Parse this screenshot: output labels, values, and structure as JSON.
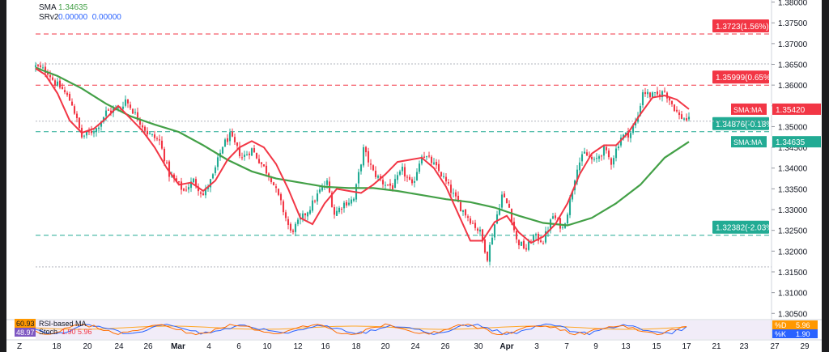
{
  "header": {
    "sma_label": "SMA",
    "sma_value": "1.34635",
    "srv2_label": "SRv2",
    "srv2_values": "0.00000  0.00000"
  },
  "chart_data": {
    "type": "candlestick",
    "title": "",
    "price_axis": {
      "ticks": [
        "1.38000",
        "1.37500",
        "1.37000",
        "1.36500",
        "1.36000",
        "1.35500",
        "1.35000",
        "1.34500",
        "1.34000",
        "1.33500",
        "1.33000",
        "1.32500",
        "1.32000",
        "1.31500",
        "1.31000",
        "1.30500"
      ],
      "min": 1.3033,
      "max": 1.3805
    },
    "time_axis": {
      "ticks": [
        "Z",
        "18",
        "20",
        "24",
        "26",
        "Mar",
        "4",
        "6",
        "10",
        "12",
        "16",
        "18",
        "20",
        "24",
        "26",
        "30",
        "Apr",
        "3",
        "7",
        "9",
        "13",
        "15",
        "17",
        "21",
        "23",
        "27",
        "29"
      ]
    },
    "levels": [
      {
        "label": "1.3723(1.56%)",
        "value": 1.3723,
        "color": "#f23645",
        "style": "dashed"
      },
      {
        "label": "1.35999(0.65%)",
        "value": 1.35999,
        "color": "#f23645",
        "style": "dashed"
      },
      {
        "label": "1.34876(-0.18%)",
        "value": 1.34876,
        "color": "#22ab94",
        "style": "dashed"
      },
      {
        "label": "1.32382(-2.03%)",
        "value": 1.32382,
        "color": "#22ab94",
        "style": "dashed"
      }
    ],
    "dotted_levels": [
      1.3651,
      1.3513,
      1.3162
    ],
    "price_tags": [
      {
        "label": "SMA:MA",
        "value": "1.35420",
        "color": "#f23645"
      },
      {
        "label": "SMA:MA",
        "value": "1.34635",
        "color": "#22ab94"
      }
    ],
    "sma_fast": {
      "name": "SMA:MA",
      "last": 1.3542,
      "color": "#f23645",
      "points": [
        [
          1,
          1.364
        ],
        [
          5,
          1.3625
        ],
        [
          10,
          1.358
        ],
        [
          15,
          1.3515
        ],
        [
          20,
          1.3485
        ],
        [
          25,
          1.3495
        ],
        [
          30,
          1.352
        ],
        [
          35,
          1.355
        ],
        [
          40,
          1.352
        ],
        [
          45,
          1.349
        ],
        [
          50,
          1.345
        ],
        [
          55,
          1.34
        ],
        [
          60,
          1.336
        ],
        [
          65,
          1.3365
        ],
        [
          70,
          1.3345
        ],
        [
          75,
          1.337
        ],
        [
          80,
          1.342
        ],
        [
          85,
          1.345
        ],
        [
          90,
          1.3465
        ],
        [
          95,
          1.345
        ],
        [
          100,
          1.341
        ],
        [
          105,
          1.335
        ],
        [
          110,
          1.328
        ],
        [
          115,
          1.3265
        ],
        [
          120,
          1.3315
        ],
        [
          125,
          1.335
        ],
        [
          130,
          1.3345
        ],
        [
          135,
          1.334
        ],
        [
          140,
          1.336
        ],
        [
          145,
          1.3385
        ],
        [
          150,
          1.3415
        ],
        [
          155,
          1.342
        ],
        [
          160,
          1.3425
        ],
        [
          165,
          1.34
        ],
        [
          170,
          1.3355
        ],
        [
          175,
          1.329
        ],
        [
          180,
          1.3225
        ],
        [
          185,
          1.3225
        ],
        [
          190,
          1.327
        ],
        [
          195,
          1.3285
        ],
        [
          200,
          1.3245
        ],
        [
          205,
          1.322
        ],
        [
          210,
          1.3235
        ],
        [
          215,
          1.3265
        ],
        [
          220,
          1.3315
        ],
        [
          225,
          1.3385
        ],
        [
          230,
          1.3435
        ],
        [
          235,
          1.3455
        ],
        [
          240,
          1.3455
        ],
        [
          245,
          1.3485
        ],
        [
          250,
          1.353
        ],
        [
          255,
          1.357
        ],
        [
          260,
          1.3575
        ],
        [
          265,
          1.3565
        ],
        [
          270,
          1.3542
        ]
      ]
    },
    "sma_slow": {
      "name": "SMA:MA",
      "last": 1.34635,
      "color": "#43a047",
      "points": [
        [
          1,
          1.3642
        ],
        [
          10,
          1.3622
        ],
        [
          20,
          1.3592
        ],
        [
          30,
          1.3555
        ],
        [
          40,
          1.3525
        ],
        [
          50,
          1.3505
        ],
        [
          60,
          1.3487
        ],
        [
          70,
          1.3455
        ],
        [
          80,
          1.342
        ],
        [
          90,
          1.3392
        ],
        [
          100,
          1.3375
        ],
        [
          110,
          1.3365
        ],
        [
          120,
          1.3355
        ],
        [
          130,
          1.3352
        ],
        [
          140,
          1.3352
        ],
        [
          150,
          1.3345
        ],
        [
          160,
          1.3335
        ],
        [
          170,
          1.3325
        ],
        [
          180,
          1.3318
        ],
        [
          190,
          1.3305
        ],
        [
          200,
          1.3285
        ],
        [
          210,
          1.3268
        ],
        [
          220,
          1.3262
        ],
        [
          230,
          1.328
        ],
        [
          240,
          1.3315
        ],
        [
          250,
          1.336
        ],
        [
          260,
          1.3425
        ],
        [
          270,
          1.34635
        ]
      ]
    },
    "candles": {
      "count": 270,
      "path": [
        [
          1,
          1.3645
        ],
        [
          6,
          1.3632
        ],
        [
          9,
          1.3605
        ],
        [
          12,
          1.359
        ],
        [
          16,
          1.3555
        ],
        [
          20,
          1.3475
        ],
        [
          26,
          1.3495
        ],
        [
          30,
          1.3535
        ],
        [
          36,
          1.3545
        ],
        [
          38,
          1.3565
        ],
        [
          42,
          1.353
        ],
        [
          47,
          1.3485
        ],
        [
          52,
          1.3465
        ],
        [
          56,
          1.3385
        ],
        [
          62,
          1.3345
        ],
        [
          66,
          1.337
        ],
        [
          70,
          1.3335
        ],
        [
          74,
          1.338
        ],
        [
          78,
          1.3455
        ],
        [
          81,
          1.3478
        ],
        [
          86,
          1.3425
        ],
        [
          90,
          1.3445
        ],
        [
          94,
          1.341
        ],
        [
          98,
          1.3375
        ],
        [
          102,
          1.3315
        ],
        [
          106,
          1.3245
        ],
        [
          110,
          1.3275
        ],
        [
          114,
          1.3305
        ],
        [
          118,
          1.3345
        ],
        [
          121,
          1.3365
        ],
        [
          124,
          1.329
        ],
        [
          128,
          1.3315
        ],
        [
          132,
          1.3325
        ],
        [
          136,
          1.3445
        ],
        [
          140,
          1.339
        ],
        [
          144,
          1.3365
        ],
        [
          148,
          1.3355
        ],
        [
          152,
          1.3395
        ],
        [
          156,
          1.3355
        ],
        [
          160,
          1.3435
        ],
        [
          164,
          1.3415
        ],
        [
          168,
          1.3385
        ],
        [
          172,
          1.3345
        ],
        [
          176,
          1.3305
        ],
        [
          180,
          1.3275
        ],
        [
          184,
          1.3245
        ],
        [
          187,
          1.3185
        ],
        [
          190,
          1.3265
        ],
        [
          193,
          1.3335
        ],
        [
          196,
          1.3305
        ],
        [
          199,
          1.3225
        ],
        [
          203,
          1.3205
        ],
        [
          206,
          1.3235
        ],
        [
          210,
          1.3225
        ],
        [
          214,
          1.3285
        ],
        [
          218,
          1.3255
        ],
        [
          220,
          1.3295
        ],
        [
          224,
          1.3405
        ],
        [
          227,
          1.3435
        ],
        [
          231,
          1.3415
        ],
        [
          235,
          1.3445
        ],
        [
          238,
          1.3415
        ],
        [
          242,
          1.3475
        ],
        [
          246,
          1.3485
        ],
        [
          249,
          1.3525
        ],
        [
          251,
          1.3585
        ],
        [
          254,
          1.3575
        ],
        [
          257,
          1.3575
        ],
        [
          260,
          1.3585
        ],
        [
          263,
          1.3555
        ],
        [
          266,
          1.3525
        ],
        [
          270,
          1.3515
        ]
      ]
    },
    "indicator": {
      "label1": "RSI-based MA",
      "label2": "Stoch",
      "values": "1.90  5.96",
      "left_tag_top": "60.93",
      "left_tag_bottom": "48.97",
      "right_tags": [
        {
          "label": "%D",
          "value": "5.96",
          "color": "#ff9800"
        },
        {
          "label": "%K",
          "value": "1.90",
          "color": "#2962ff"
        }
      ]
    }
  }
}
